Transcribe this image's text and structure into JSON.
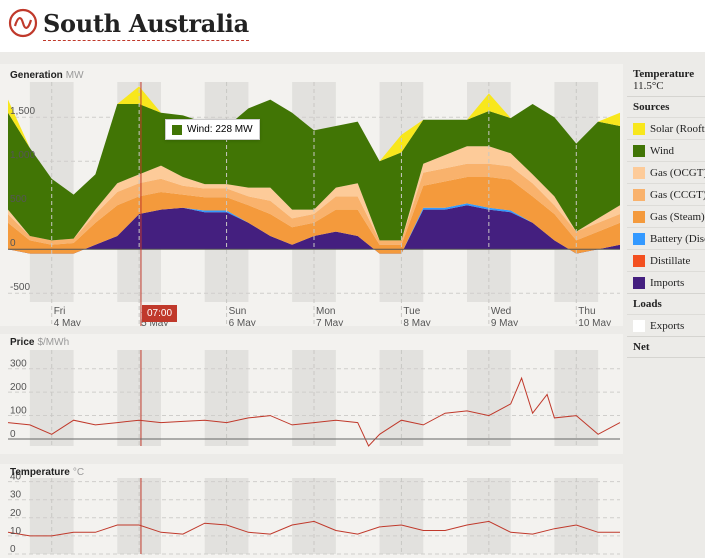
{
  "header": {
    "title": "South Australia"
  },
  "colors": {
    "accent": "#c0392b"
  },
  "tooltip": {
    "text": "Wind: 228 MW",
    "color": "#417505"
  },
  "cursor_time": "07:00",
  "legend": {
    "temperature_heading": "Temperature",
    "temperature_value": "11.5°C",
    "sources_heading": "Sources",
    "sources": [
      {
        "label": "Solar (Rooftop)",
        "color": "#f8e71c"
      },
      {
        "label": "Wind",
        "color": "#417505"
      },
      {
        "label": "Gas (OCGT)",
        "color": "#fdcb99"
      },
      {
        "label": "Gas (CCGT)",
        "color": "#f9b26c"
      },
      {
        "label": "Gas (Steam)",
        "color": "#f49a3c"
      },
      {
        "label": "Battery (Discharging)",
        "color": "#3399ff"
      },
      {
        "label": "Distillate",
        "color": "#f35020"
      },
      {
        "label": "Imports",
        "color": "#441f7f"
      }
    ],
    "loads_heading": "Loads",
    "loads": [
      {
        "label": "Exports",
        "color": "#ffffff"
      }
    ],
    "net_heading": "Net"
  },
  "chart_data": [
    {
      "type": "area",
      "title": "Generation",
      "unit": "MW",
      "y_ticks": [
        "1,500",
        "1,000",
        "500",
        "0",
        "-500"
      ],
      "ylim": [
        -600,
        1900
      ],
      "x_ticks": [
        {
          "day": "Fri",
          "date": "4 May"
        },
        {
          "day": "Sat",
          "date": "5 May"
        },
        {
          "day": "Sun",
          "date": "6 May"
        },
        {
          "day": "Mon",
          "date": "7 May"
        },
        {
          "day": "Tue",
          "date": "8 May"
        },
        {
          "day": "Wed",
          "date": "9 May"
        },
        {
          "day": "Thu",
          "date": "10 May"
        }
      ],
      "x": [
        0,
        6,
        12,
        18,
        24,
        30,
        36,
        42,
        48,
        54,
        60,
        66,
        72,
        78,
        84,
        90,
        96,
        102,
        108,
        114,
        120,
        126,
        132,
        138,
        144,
        150,
        156,
        162,
        168
      ],
      "series": [
        {
          "name": "Imports",
          "values": [
            0,
            -50,
            -50,
            -50,
            50,
            150,
            400,
            450,
            470,
            420,
            420,
            300,
            150,
            50,
            150,
            200,
            150,
            -50,
            -50,
            450,
            450,
            500,
            450,
            420,
            300,
            100,
            -50,
            0,
            50
          ]
        },
        {
          "name": "Battery (Discharging)",
          "values": [
            0,
            0,
            0,
            0,
            0,
            0,
            0,
            0,
            0,
            20,
            20,
            0,
            0,
            0,
            0,
            0,
            0,
            0,
            0,
            20,
            20,
            20,
            20,
            20,
            0,
            0,
            0,
            0,
            0
          ]
        },
        {
          "name": "Gas (Steam)",
          "values": [
            300,
            150,
            100,
            120,
            250,
            350,
            200,
            200,
            150,
            150,
            150,
            200,
            250,
            200,
            150,
            250,
            300,
            100,
            100,
            250,
            300,
            300,
            350,
            350,
            300,
            300,
            150,
            200,
            250
          ]
        },
        {
          "name": "Gas (CCGT)",
          "values": [
            100,
            50,
            50,
            50,
            100,
            150,
            150,
            150,
            100,
            100,
            100,
            100,
            150,
            100,
            100,
            150,
            150,
            50,
            50,
            150,
            150,
            150,
            150,
            150,
            150,
            100,
            100,
            100,
            100
          ]
        },
        {
          "name": "Gas (OCGT)",
          "values": [
            50,
            0,
            0,
            0,
            50,
            100,
            100,
            150,
            100,
            50,
            50,
            100,
            150,
            100,
            50,
            100,
            150,
            0,
            0,
            100,
            150,
            200,
            200,
            150,
            100,
            100,
            0,
            50,
            100
          ]
        },
        {
          "name": "Wind",
          "values": [
            1100,
            1000,
            700,
            500,
            400,
            900,
            800,
            600,
            700,
            700,
            650,
            900,
            1000,
            1100,
            900,
            700,
            700,
            900,
            1000,
            500,
            400,
            300,
            400,
            400,
            800,
            900,
            1000,
            1100,
            900
          ]
        },
        {
          "name": "Solar (Rooftop)",
          "values": [
            150,
            0,
            0,
            0,
            0,
            0,
            200,
            0,
            0,
            0,
            0,
            0,
            0,
            0,
            0,
            0,
            0,
            0,
            200,
            0,
            0,
            0,
            200,
            0,
            0,
            0,
            0,
            0,
            150
          ]
        }
      ]
    },
    {
      "type": "line",
      "title": "Price",
      "unit": "$/MWh",
      "y_ticks": [
        "300",
        "200",
        "100",
        "0"
      ],
      "ylim": [
        -30,
        380
      ],
      "x": [
        0,
        6,
        12,
        18,
        24,
        30,
        36,
        42,
        48,
        54,
        60,
        66,
        72,
        78,
        84,
        90,
        96,
        99,
        102,
        108,
        114,
        120,
        126,
        132,
        138,
        141,
        144,
        148,
        150,
        156,
        162,
        168
      ],
      "series": [
        {
          "name": "Price",
          "values": [
            70,
            60,
            20,
            80,
            60,
            70,
            80,
            70,
            75,
            80,
            70,
            90,
            100,
            60,
            70,
            80,
            70,
            -30,
            20,
            80,
            60,
            110,
            120,
            100,
            150,
            260,
            110,
            190,
            90,
            100,
            20,
            70
          ]
        }
      ]
    },
    {
      "type": "line",
      "title": "Temperature",
      "unit": "°C",
      "y_ticks": [
        "40",
        "30",
        "20",
        "10",
        "0"
      ],
      "ylim": [
        0,
        42
      ],
      "x": [
        0,
        6,
        12,
        18,
        24,
        30,
        36,
        42,
        48,
        54,
        60,
        66,
        72,
        78,
        84,
        90,
        96,
        102,
        108,
        114,
        120,
        126,
        132,
        138,
        144,
        150,
        156,
        162,
        168
      ],
      "series": [
        {
          "name": "Temperature",
          "values": [
            12,
            10,
            10,
            12,
            12,
            16,
            16,
            12,
            11,
            17,
            16,
            12,
            11,
            16,
            18,
            13,
            11,
            15,
            16,
            13,
            13,
            16,
            18,
            12,
            11,
            14,
            16,
            12,
            12
          ]
        }
      ]
    }
  ]
}
